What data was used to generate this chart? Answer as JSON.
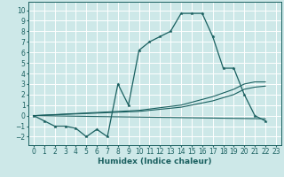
{
  "xlabel": "Humidex (Indice chaleur)",
  "xlim": [
    -0.5,
    23.5
  ],
  "ylim": [
    -2.8,
    10.8
  ],
  "bg_color": "#cde8e8",
  "grid_color": "#ffffff",
  "line_color": "#1a6060",
  "series": [
    {
      "x": [
        0,
        1,
        2,
        3,
        4,
        5,
        6,
        7,
        8,
        9,
        10,
        11,
        12,
        13,
        14,
        15,
        16,
        17,
        18,
        19,
        20,
        21,
        22
      ],
      "y": [
        0.0,
        -0.5,
        -1.0,
        -1.0,
        -1.2,
        -2.0,
        -1.3,
        -2.0,
        3.0,
        1.0,
        6.2,
        7.0,
        7.5,
        8.0,
        9.7,
        9.7,
        9.7,
        7.5,
        4.5,
        4.5,
        2.0,
        0.0,
        -0.5
      ],
      "marker": true
    },
    {
      "x": [
        0,
        22
      ],
      "y": [
        0.0,
        -0.3
      ],
      "marker": false
    },
    {
      "x": [
        0,
        10,
        14,
        17,
        19,
        20,
        21,
        22
      ],
      "y": [
        0.0,
        0.5,
        1.0,
        1.8,
        2.5,
        3.0,
        3.2,
        3.2
      ],
      "marker": false
    },
    {
      "x": [
        0,
        10,
        14,
        17,
        19,
        20,
        21,
        22
      ],
      "y": [
        0.0,
        0.4,
        0.8,
        1.4,
        2.0,
        2.5,
        2.7,
        2.8
      ],
      "marker": false
    }
  ],
  "xticks": [
    0,
    1,
    2,
    3,
    4,
    5,
    6,
    7,
    8,
    9,
    10,
    11,
    12,
    13,
    14,
    15,
    16,
    17,
    18,
    19,
    20,
    21,
    22,
    23
  ],
  "yticks": [
    -2,
    -1,
    0,
    1,
    2,
    3,
    4,
    5,
    6,
    7,
    8,
    9,
    10
  ],
  "tick_fontsize": 5.5,
  "label_fontsize": 6.5
}
